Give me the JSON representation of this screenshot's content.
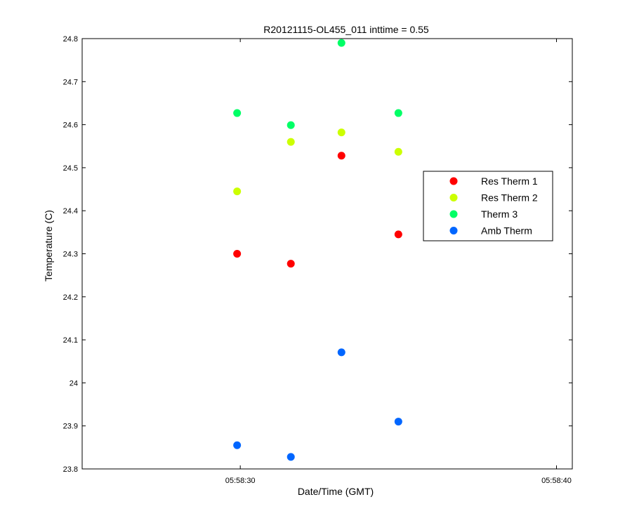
{
  "chart_data": {
    "type": "scatter",
    "title": "R20121115-OL455_011 inttime = 0.55",
    "xlabel": "Date/Time (GMT)",
    "ylabel": "Temperature (C)",
    "x_unit": "seconds",
    "xlim": [
      25,
      40.5
    ],
    "ylim": [
      23.8,
      24.8
    ],
    "x_ticks": [
      {
        "value": 30,
        "label": "05:58:30"
      },
      {
        "value": 40,
        "label": "05:58:40"
      }
    ],
    "y_ticks": [
      {
        "value": 23.8,
        "label": "23.8"
      },
      {
        "value": 23.9,
        "label": "23.9"
      },
      {
        "value": 24.0,
        "label": "24"
      },
      {
        "value": 24.1,
        "label": "24.1"
      },
      {
        "value": 24.2,
        "label": "24.2"
      },
      {
        "value": 24.3,
        "label": "24.3"
      },
      {
        "value": 24.4,
        "label": "24.4"
      },
      {
        "value": 24.5,
        "label": "24.5"
      },
      {
        "value": 24.6,
        "label": "24.6"
      },
      {
        "value": 24.7,
        "label": "24.7"
      },
      {
        "value": 24.8,
        "label": "24.8"
      }
    ],
    "x": [
      29.9,
      31.6,
      33.2,
      35.0
    ],
    "series": [
      {
        "name": "Res Therm 1",
        "color": "#ff0000",
        "values": [
          24.3,
          24.277,
          24.528,
          24.345
        ]
      },
      {
        "name": "Res Therm 2",
        "color": "#ccff00",
        "values": [
          24.445,
          24.56,
          24.582,
          24.537
        ]
      },
      {
        "name": "Therm 3",
        "color": "#00ff66",
        "values": [
          24.627,
          24.599,
          24.79,
          24.627
        ]
      },
      {
        "name": "Amb Therm",
        "color": "#0066ff",
        "values": [
          23.855,
          23.828,
          24.071,
          23.91
        ]
      }
    ],
    "grid": false,
    "legend_position": "right"
  }
}
